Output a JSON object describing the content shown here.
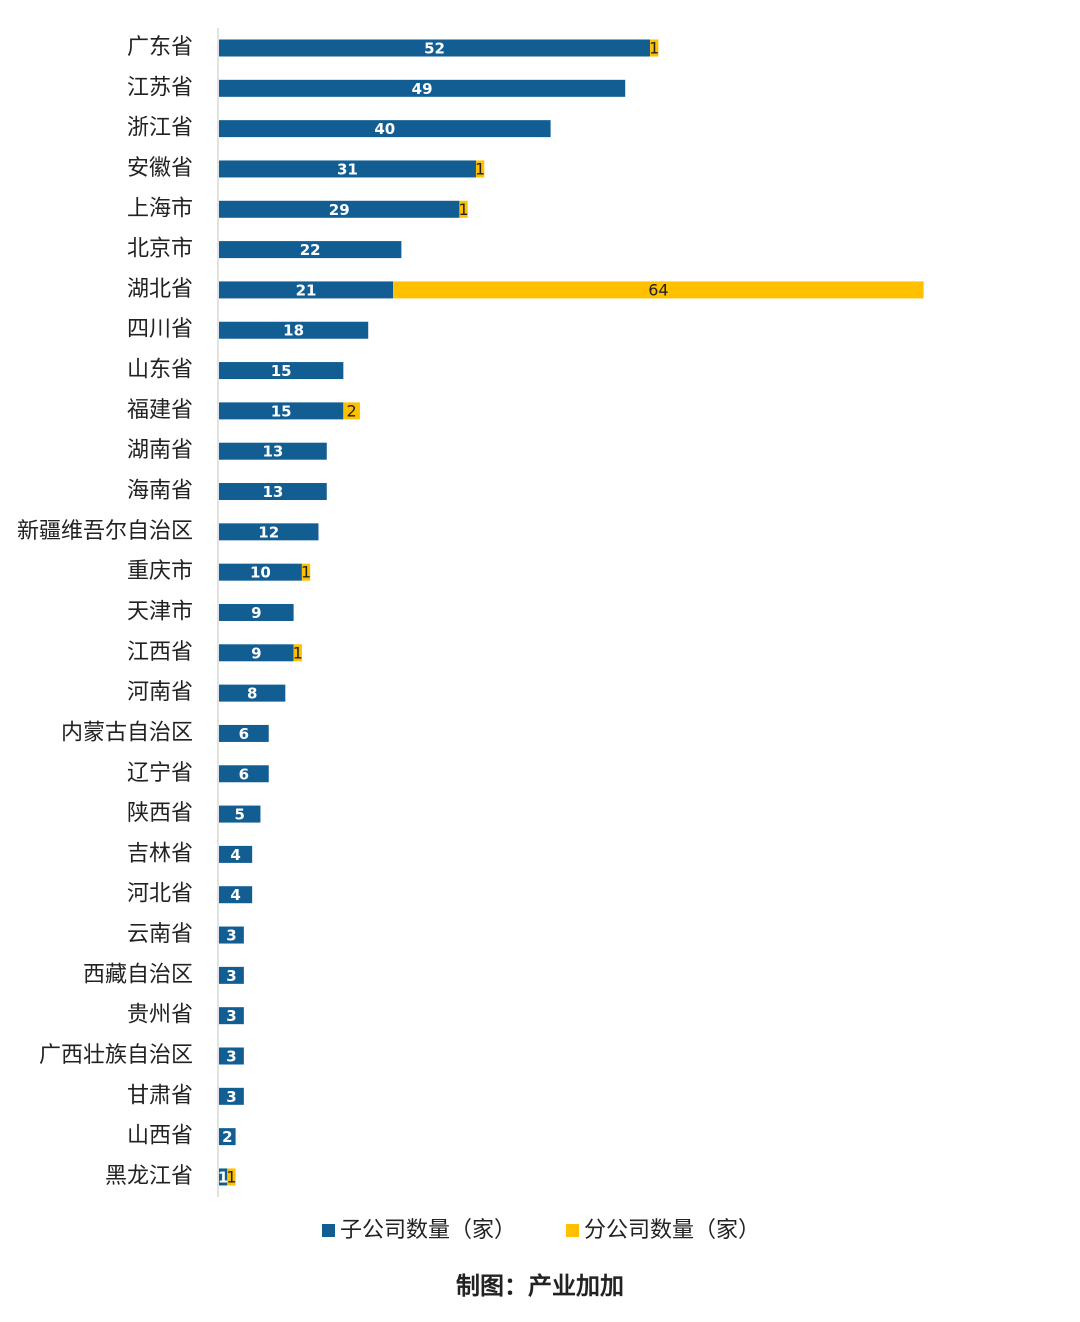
{
  "chart_data": {
    "type": "stacked-barh",
    "categories": [
      "广东省",
      "江苏省",
      "浙江省",
      "安徽省",
      "上海市",
      "北京市",
      "湖北省",
      "四川省",
      "山东省",
      "福建省",
      "湖南省",
      "海南省",
      "新疆维吾尔自治区",
      "重庆市",
      "天津市",
      "江西省",
      "河南省",
      "内蒙古自治区",
      "辽宁省",
      "陕西省",
      "吉林省",
      "河北省",
      "云南省",
      "西藏自治区",
      "贵州省",
      "广西壮族自治区",
      "甘肃省",
      "山西省",
      "黑龙江省"
    ],
    "series": [
      {
        "name": "子公司数量（家）",
        "color": "#125d92",
        "values": [
          52,
          49,
          40,
          31,
          29,
          22,
          21,
          18,
          15,
          15,
          13,
          13,
          12,
          10,
          9,
          9,
          8,
          6,
          6,
          5,
          4,
          4,
          3,
          3,
          3,
          3,
          3,
          2,
          1
        ]
      },
      {
        "name": "分公司数量（家）",
        "color": "#ffc000",
        "values": [
          1,
          null,
          null,
          1,
          1,
          null,
          64,
          null,
          null,
          2,
          null,
          null,
          null,
          1,
          null,
          1,
          null,
          null,
          null,
          null,
          null,
          null,
          null,
          null,
          null,
          null,
          null,
          null,
          1
        ]
      }
    ],
    "legend": "bottom",
    "source": "制图：产业加加"
  }
}
